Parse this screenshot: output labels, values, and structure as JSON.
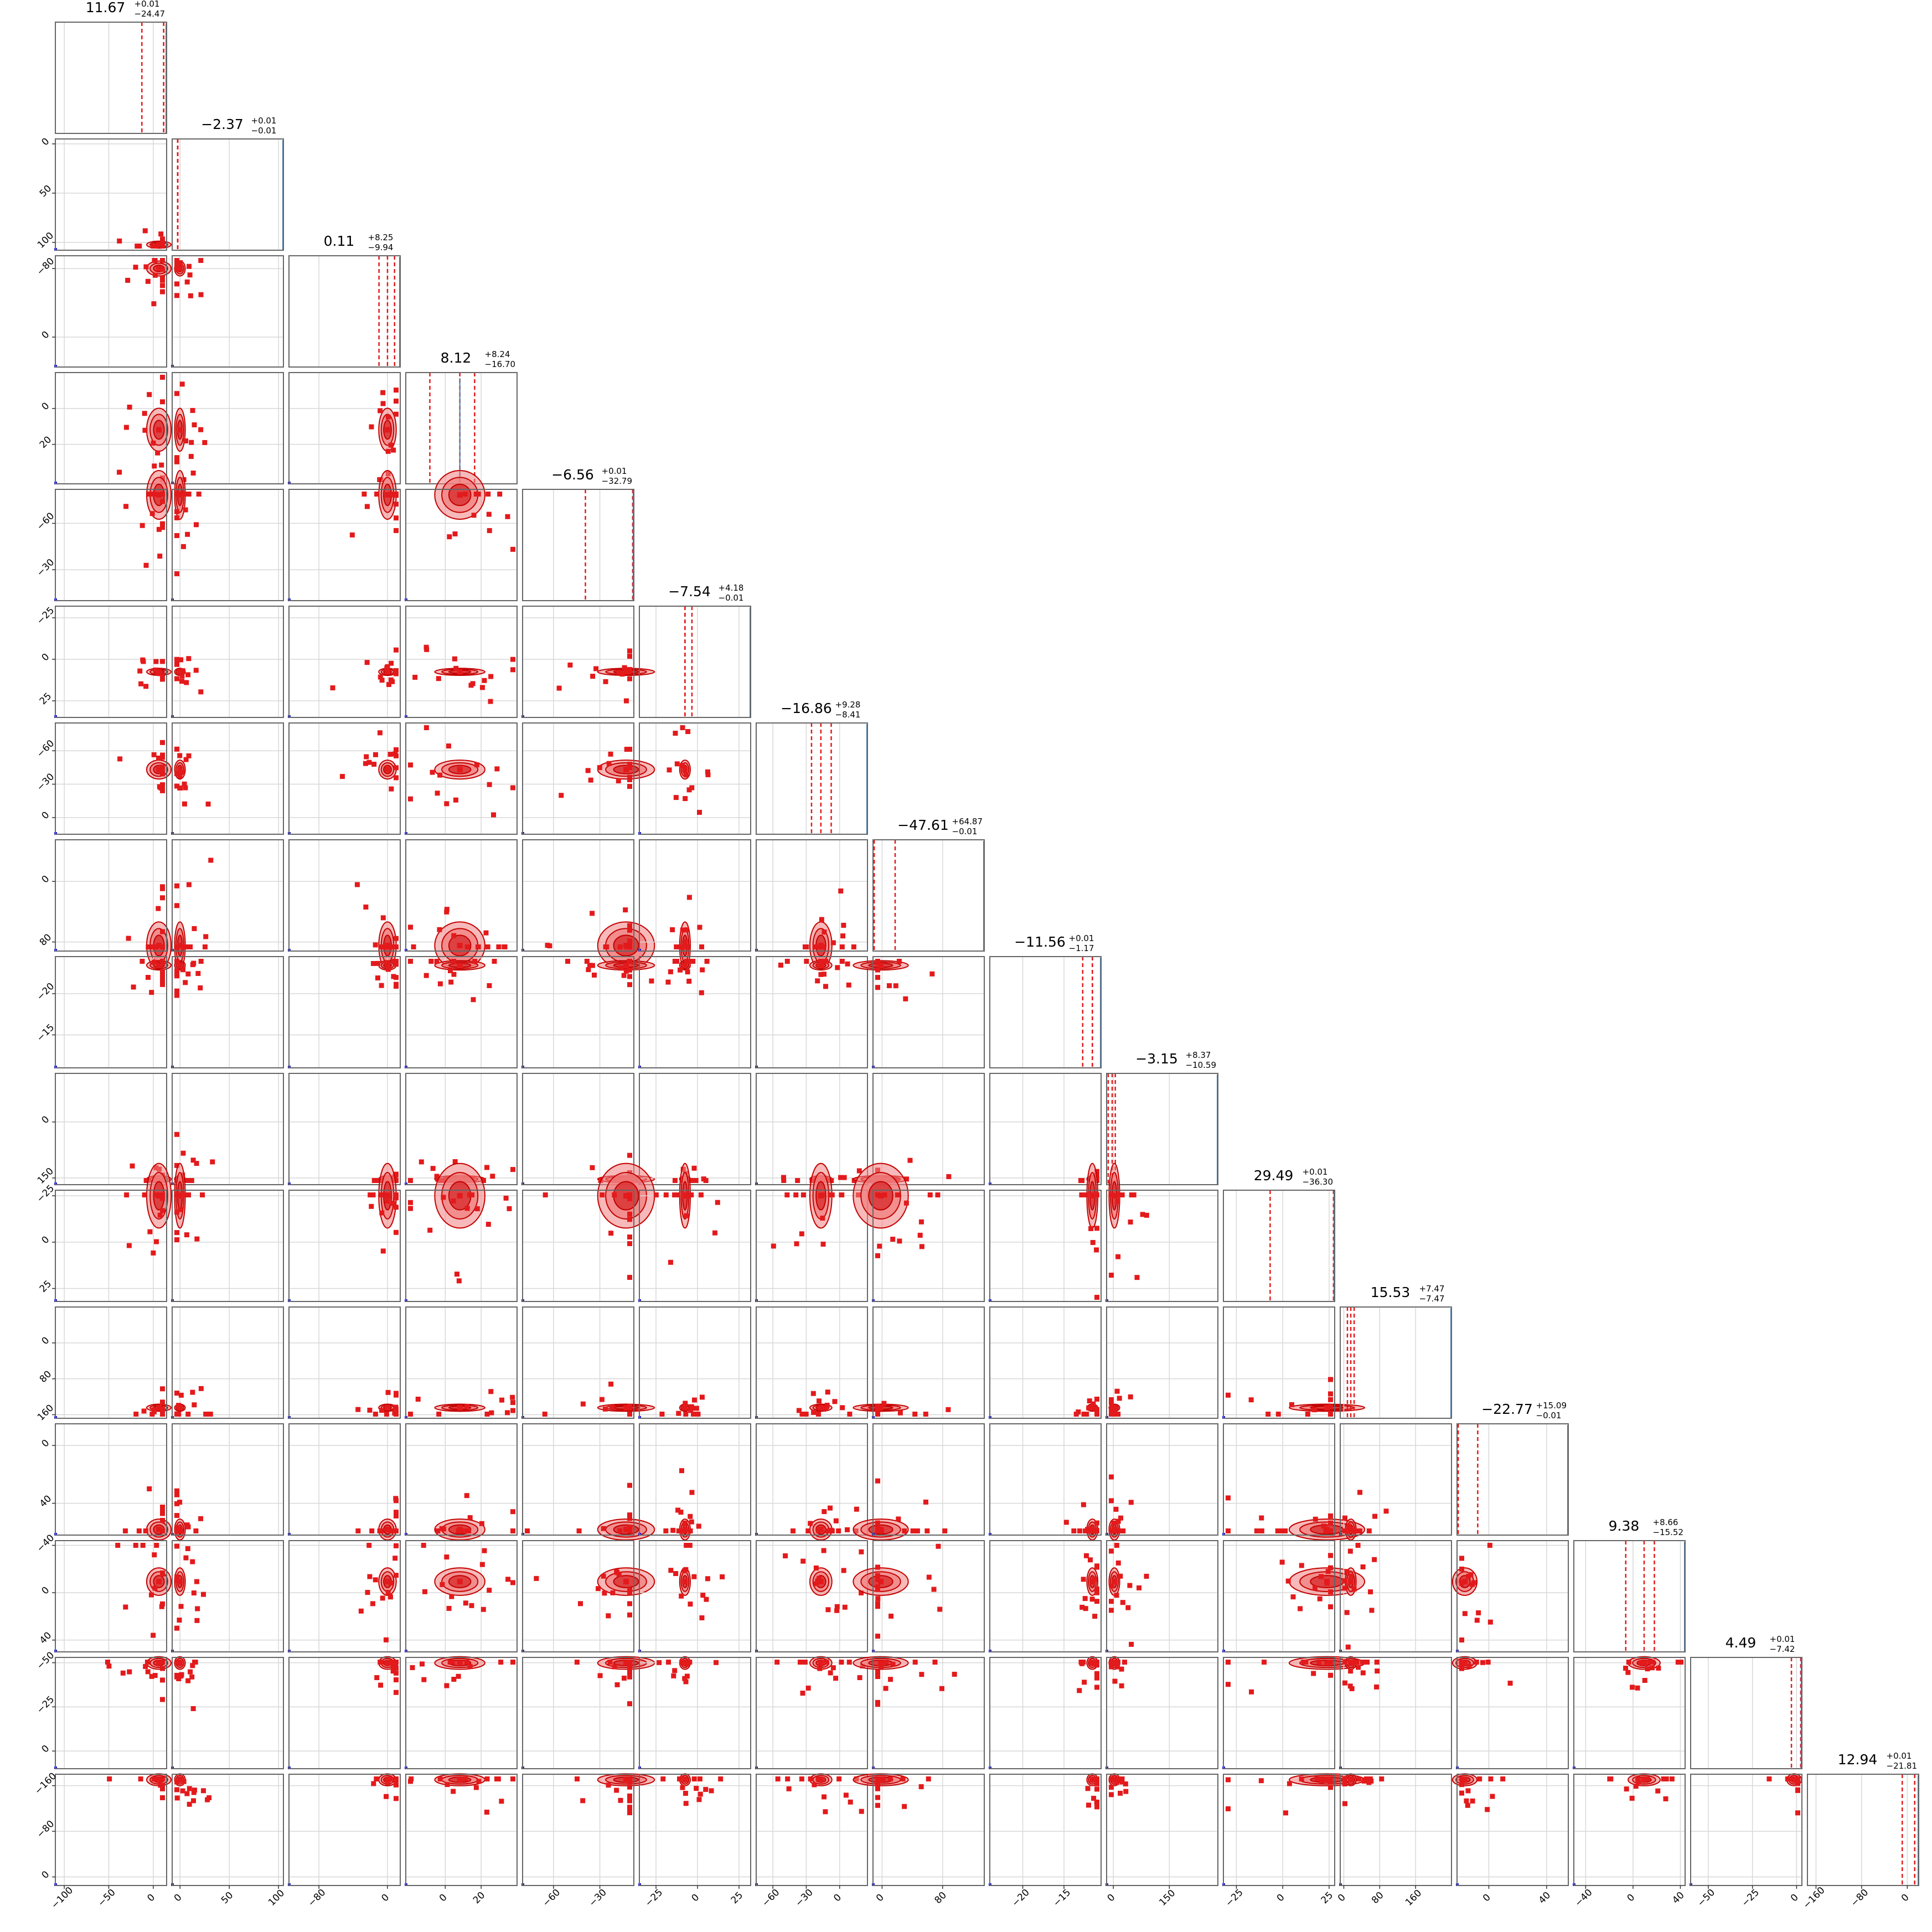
{
  "chart_data": {
    "type": "scatter",
    "subtype": "corner-plot",
    "n_params": 16,
    "grid": true,
    "colors": {
      "samples": "#e31a1c",
      "contour_fill": "#f08080",
      "contour_line": "#c40000",
      "quantile_line": "#e31a1c",
      "truth_marker": "#1f1fd6",
      "axis_frame": "#666666",
      "grid": "#d8d8d8"
    },
    "titles": [
      {
        "median": "11.67",
        "plus": "+0.01",
        "minus": "−24.47"
      },
      {
        "median": "−2.37",
        "plus": "+0.01",
        "minus": "−0.01"
      },
      {
        "median": "0.11",
        "plus": "+8.25",
        "minus": "−9.94"
      },
      {
        "median": "8.12",
        "plus": "+8.24",
        "minus": "−16.70"
      },
      {
        "median": "−6.56",
        "plus": "+0.01",
        "minus": "−32.79"
      },
      {
        "median": "−7.54",
        "plus": "+4.18",
        "minus": "−0.01"
      },
      {
        "median": "−16.86",
        "plus": "+9.28",
        "minus": "−8.41"
      },
      {
        "median": "−47.61",
        "plus": "+64.87",
        "minus": "−0.01"
      },
      {
        "median": "−11.56",
        "plus": "+0.01",
        "minus": "−1.17"
      },
      {
        "median": "−3.15",
        "plus": "+8.37",
        "minus": "−10.59"
      },
      {
        "median": "29.49",
        "plus": "+0.01",
        "minus": "−36.30"
      },
      {
        "median": "15.53",
        "plus": "+7.47",
        "minus": "−7.47"
      },
      {
        "median": "−22.77",
        "plus": "+15.09",
        "minus": "−0.01"
      },
      {
        "median": "9.38",
        "plus": "+8.66",
        "minus": "−15.52"
      },
      {
        "median": "4.49",
        "plus": "+0.01",
        "minus": "−7.42"
      },
      {
        "median": "12.94",
        "plus": "+0.01",
        "minus": "−21.81"
      }
    ],
    "x_ranges": [
      [
        -110,
        15
      ],
      [
        -8,
        105
      ],
      [
        -115,
        15
      ],
      [
        -22,
        40
      ],
      [
        -80,
        -8
      ],
      [
        -35,
        32
      ],
      [
        -75,
        25
      ],
      [
        -12,
        135
      ],
      [
        -24,
        -10.5
      ],
      [
        -18,
        280
      ],
      [
        -32,
        28
      ],
      [
        -8,
        240
      ],
      [
        -22,
        55
      ],
      [
        -50,
        44
      ],
      [
        -60,
        3
      ],
      [
        -175,
        20
      ]
    ],
    "x_ticks": [
      [
        "−100",
        "−50",
        "0"
      ],
      [
        "0",
        "50",
        "100"
      ],
      [
        "−80",
        "0"
      ],
      [
        "0",
        "20"
      ],
      [
        "−60",
        "−30"
      ],
      [
        "−25",
        "0",
        "25"
      ],
      [
        "−60",
        "−30",
        "0"
      ],
      [
        "0",
        "80"
      ],
      [
        "−20",
        "−15"
      ],
      [
        "0",
        "150"
      ],
      [
        "−25",
        "0",
        "25"
      ],
      [
        "0",
        "80",
        "160"
      ],
      [
        "0",
        "40"
      ],
      [
        "−40",
        "0",
        "40"
      ],
      [
        "−50",
        "−25",
        "0"
      ],
      [
        "−160",
        "−80",
        "0"
      ]
    ],
    "y_ticks": [
      [],
      [
        "100",
        "50",
        "0"
      ],
      [
        "0",
        "−80"
      ],
      [
        "20",
        "0"
      ],
      [
        "−30",
        "−60"
      ],
      [
        "25",
        "0",
        "−25"
      ],
      [
        "0",
        "−30",
        "−60"
      ],
      [
        "80",
        "0"
      ],
      [
        "−15",
        "−20"
      ],
      [
        "150",
        "0"
      ],
      [
        "25",
        "0",
        "−25"
      ],
      [
        "160",
        "80",
        "0"
      ],
      [
        "40",
        "0"
      ],
      [
        "40",
        "0",
        "−40"
      ],
      [
        "0",
        "−25",
        "−50"
      ],
      [
        "0",
        "−80",
        "−160"
      ]
    ],
    "tick_values": [
      [
        -100,
        -50,
        0
      ],
      [
        0,
        50,
        100
      ],
      [
        -80,
        0
      ],
      [
        0,
        20
      ],
      [
        -60,
        -30
      ],
      [
        -25,
        0,
        25
      ],
      [
        -60,
        -30,
        0
      ],
      [
        0,
        80
      ],
      [
        -20,
        -15
      ],
      [
        0,
        150
      ],
      [
        -25,
        0,
        25
      ],
      [
        0,
        80,
        160
      ],
      [
        0,
        40
      ],
      [
        -40,
        0,
        40
      ],
      [
        -50,
        -25,
        0
      ],
      [
        -160,
        -80,
        0
      ]
    ],
    "y_ranges": [
      null,
      [
        -8,
        105
      ],
      [
        -115,
        15
      ],
      [
        -22,
        40
      ],
      [
        -80,
        -8
      ],
      [
        -35,
        32
      ],
      [
        -75,
        25
      ],
      [
        -12,
        135
      ],
      [
        -24,
        -10.5
      ],
      [
        -18,
        280
      ],
      [
        -32,
        28
      ],
      [
        -8,
        240
      ],
      [
        -22,
        55
      ],
      [
        -50,
        44
      ],
      [
        -60,
        3
      ],
      [
        -175,
        20
      ]
    ],
    "quantiles": [
      [
        -12.8,
        11.68,
        11.68
      ],
      [
        -2.38,
        -2.37,
        -2.36
      ],
      [
        -9.83,
        0.11,
        8.36
      ],
      [
        -8.58,
        8.12,
        16.36
      ],
      [
        -39.35,
        -6.56,
        -6.55
      ],
      [
        -7.55,
        -7.54,
        -3.36
      ],
      [
        -25.27,
        -16.86,
        -7.58
      ],
      [
        -47.62,
        -47.61,
        17.26
      ],
      [
        -12.73,
        -11.56,
        -11.55
      ],
      [
        -13.74,
        -3.15,
        5.22
      ],
      [
        -6.81,
        29.49,
        29.5
      ],
      [
        8.06,
        15.53,
        23.0
      ],
      [
        -22.78,
        -22.77,
        -7.68
      ],
      [
        -6.14,
        9.38,
        18.04
      ],
      [
        -2.93,
        4.49,
        4.5
      ],
      [
        -8.87,
        12.94,
        12.95
      ]
    ],
    "truth_marker_x": 8.12
  }
}
